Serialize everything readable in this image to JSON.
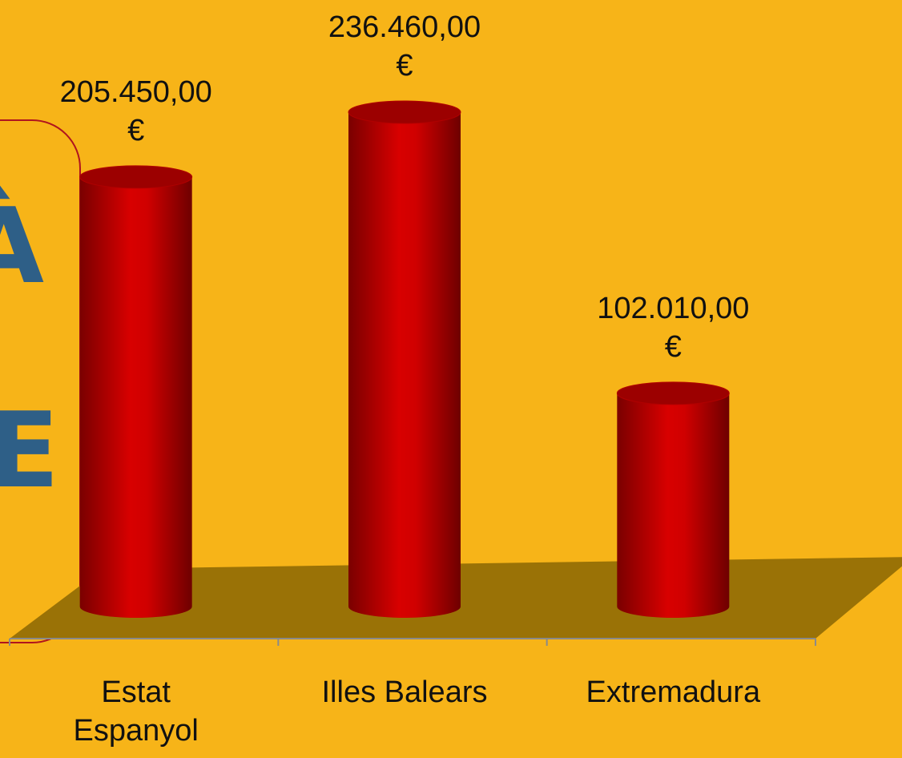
{
  "chart_data": {
    "type": "bar",
    "categories": [
      "Estat\nEspanyol",
      "Illes Balears",
      "Extremadura"
    ],
    "values": [
      205450,
      236460,
      102010
    ],
    "value_labels": [
      "205.450,00 €",
      "236.460,00 €",
      "102.010,00 €"
    ],
    "color": "#cc0000",
    "annotations": [
      "À",
      "E"
    ]
  }
}
